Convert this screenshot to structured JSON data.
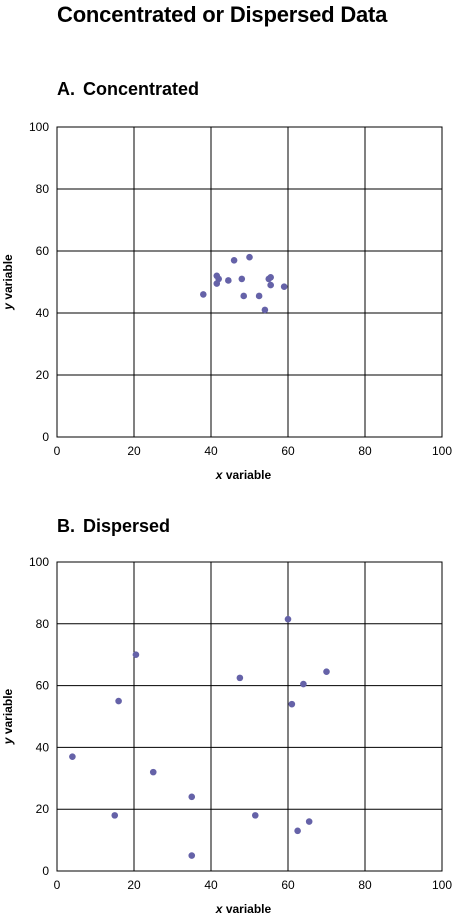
{
  "page": {
    "title": "Concentrated or Dispersed Data"
  },
  "chart_data": [
    {
      "type": "scatter",
      "letter": "A.",
      "title": "Concentrated",
      "xlabel_var": "x",
      "xlabel_rest": " variable",
      "ylabel_var": "y",
      "ylabel_rest": " variable",
      "xlim": [
        0,
        100
      ],
      "ylim": [
        0,
        100
      ],
      "xticks": [
        0,
        20,
        40,
        60,
        80,
        100
      ],
      "yticks": [
        0,
        20,
        40,
        60,
        80,
        100
      ],
      "grid": true,
      "color": "#6562a8",
      "points": [
        {
          "x": 38,
          "y": 46
        },
        {
          "x": 41.5,
          "y": 52
        },
        {
          "x": 41.5,
          "y": 49.5
        },
        {
          "x": 42,
          "y": 51
        },
        {
          "x": 44.5,
          "y": 50.5
        },
        {
          "x": 46,
          "y": 57
        },
        {
          "x": 48,
          "y": 51
        },
        {
          "x": 48.5,
          "y": 45.5
        },
        {
          "x": 50,
          "y": 58
        },
        {
          "x": 52.5,
          "y": 45.5
        },
        {
          "x": 54,
          "y": 41
        },
        {
          "x": 55,
          "y": 51
        },
        {
          "x": 55.5,
          "y": 49
        },
        {
          "x": 55.5,
          "y": 51.5
        },
        {
          "x": 59,
          "y": 48.5
        }
      ]
    },
    {
      "type": "scatter",
      "letter": "B.",
      "title": "Dispersed",
      "xlabel_var": "x",
      "xlabel_rest": " variable",
      "ylabel_var": "y",
      "ylabel_rest": " variable",
      "xlim": [
        0,
        100
      ],
      "ylim": [
        0,
        100
      ],
      "xticks": [
        0,
        20,
        40,
        60,
        80,
        100
      ],
      "yticks": [
        0,
        20,
        40,
        60,
        80,
        100
      ],
      "grid": true,
      "color": "#6562a8",
      "points": [
        {
          "x": 4,
          "y": 37
        },
        {
          "x": 15,
          "y": 18
        },
        {
          "x": 16,
          "y": 55
        },
        {
          "x": 20.5,
          "y": 70
        },
        {
          "x": 25,
          "y": 32
        },
        {
          "x": 35,
          "y": 24
        },
        {
          "x": 35,
          "y": 5
        },
        {
          "x": 47.5,
          "y": 62.5
        },
        {
          "x": 51.5,
          "y": 18
        },
        {
          "x": 60,
          "y": 81.5
        },
        {
          "x": 61,
          "y": 54
        },
        {
          "x": 62.5,
          "y": 13
        },
        {
          "x": 64,
          "y": 60.5
        },
        {
          "x": 65.5,
          "y": 16
        },
        {
          "x": 70,
          "y": 64.5
        }
      ]
    }
  ]
}
